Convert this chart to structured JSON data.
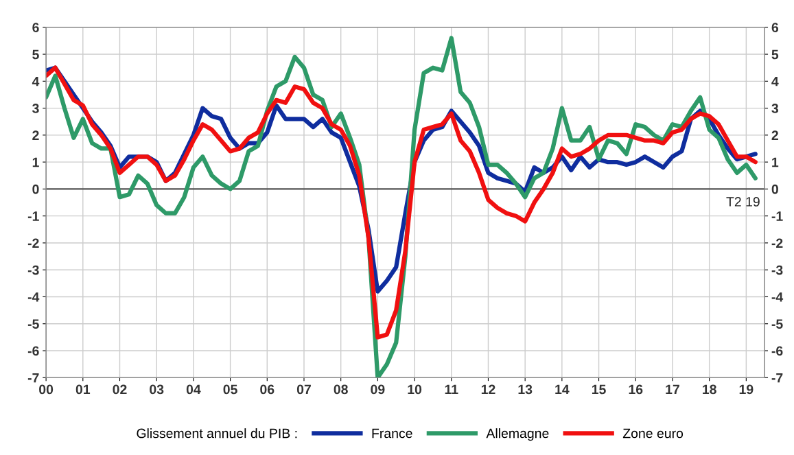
{
  "chart_data": {
    "type": "line",
    "x": [
      2000.0,
      2000.25,
      2000.5,
      2000.75,
      2001.0,
      2001.25,
      2001.5,
      2001.75,
      2002.0,
      2002.25,
      2002.5,
      2002.75,
      2003.0,
      2003.25,
      2003.5,
      2003.75,
      2004.0,
      2004.25,
      2004.5,
      2004.75,
      2005.0,
      2005.25,
      2005.5,
      2005.75,
      2006.0,
      2006.25,
      2006.5,
      2006.75,
      2007.0,
      2007.25,
      2007.5,
      2007.75,
      2008.0,
      2008.25,
      2008.5,
      2008.75,
      2009.0,
      2009.25,
      2009.5,
      2009.75,
      2010.0,
      2010.25,
      2010.5,
      2010.75,
      2011.0,
      2011.25,
      2011.5,
      2011.75,
      2012.0,
      2012.25,
      2012.5,
      2012.75,
      2013.0,
      2013.25,
      2013.5,
      2013.75,
      2014.0,
      2014.25,
      2014.5,
      2014.75,
      2015.0,
      2015.25,
      2015.5,
      2015.75,
      2016.0,
      2016.25,
      2016.5,
      2016.75,
      2017.0,
      2017.25,
      2017.5,
      2017.75,
      2018.0,
      2018.25,
      2018.5,
      2018.75,
      2019.0,
      2019.25
    ],
    "series": [
      {
        "name": "France",
        "color": "#0f2d9e",
        "values": [
          4.4,
          4.5,
          4.0,
          3.5,
          3.0,
          2.5,
          2.1,
          1.6,
          0.8,
          1.2,
          1.2,
          1.2,
          1.0,
          0.3,
          0.6,
          1.3,
          2.0,
          3.0,
          2.7,
          2.6,
          1.9,
          1.5,
          1.7,
          1.7,
          2.1,
          3.1,
          2.6,
          2.6,
          2.6,
          2.3,
          2.6,
          2.1,
          1.9,
          1.0,
          0.1,
          -1.5,
          -3.8,
          -3.4,
          -2.9,
          -0.9,
          1.0,
          1.8,
          2.2,
          2.3,
          2.9,
          2.5,
          2.1,
          1.6,
          0.6,
          0.4,
          0.3,
          0.2,
          -0.1,
          0.8,
          0.6,
          0.8,
          1.2,
          0.7,
          1.2,
          0.8,
          1.1,
          1.0,
          1.0,
          0.9,
          1.0,
          1.2,
          1.0,
          0.8,
          1.2,
          1.4,
          2.6,
          2.9,
          2.6,
          2.0,
          1.5,
          1.1,
          1.2,
          1.3
        ]
      },
      {
        "name": "Allemagne",
        "color": "#2e9a68",
        "values": [
          3.4,
          4.2,
          3.0,
          1.9,
          2.6,
          1.7,
          1.5,
          1.5,
          -0.3,
          -0.2,
          0.5,
          0.2,
          -0.6,
          -0.9,
          -0.9,
          -0.3,
          0.8,
          1.2,
          0.5,
          0.2,
          0.0,
          0.3,
          1.4,
          1.6,
          2.9,
          3.8,
          4.0,
          4.9,
          4.5,
          3.5,
          3.3,
          2.3,
          2.8,
          1.9,
          0.9,
          -1.8,
          -7.0,
          -6.5,
          -5.7,
          -2.5,
          2.2,
          4.3,
          4.5,
          4.4,
          5.6,
          3.6,
          3.2,
          2.3,
          0.9,
          0.9,
          0.6,
          0.2,
          -0.3,
          0.4,
          0.6,
          1.5,
          3.0,
          1.8,
          1.8,
          2.3,
          1.1,
          1.8,
          1.7,
          1.3,
          2.4,
          2.3,
          2.0,
          1.8,
          2.4,
          2.3,
          2.9,
          3.4,
          2.2,
          1.9,
          1.1,
          0.6,
          0.9,
          0.4
        ]
      },
      {
        "name": "Zone euro",
        "color": "#f01010",
        "values": [
          4.2,
          4.5,
          3.9,
          3.3,
          3.1,
          2.4,
          2.0,
          1.5,
          0.6,
          0.9,
          1.2,
          1.2,
          0.9,
          0.3,
          0.5,
          1.1,
          1.8,
          2.4,
          2.2,
          1.8,
          1.4,
          1.5,
          1.9,
          2.1,
          2.8,
          3.3,
          3.2,
          3.8,
          3.7,
          3.2,
          3.0,
          2.4,
          2.2,
          1.6,
          0.5,
          -1.8,
          -5.5,
          -5.4,
          -4.5,
          -2.3,
          1.0,
          2.2,
          2.3,
          2.4,
          2.8,
          1.8,
          1.4,
          0.6,
          -0.4,
          -0.7,
          -0.9,
          -1.0,
          -1.2,
          -0.5,
          0.0,
          0.6,
          1.5,
          1.2,
          1.3,
          1.5,
          1.8,
          2.0,
          2.0,
          2.0,
          1.9,
          1.8,
          1.8,
          1.7,
          2.1,
          2.2,
          2.6,
          2.8,
          2.7,
          2.4,
          1.8,
          1.2,
          1.2,
          1.0
        ]
      }
    ],
    "xlim": [
      2000,
      2019.5
    ],
    "xticks": [
      {
        "value": 2000,
        "label": "00"
      },
      {
        "value": 2001,
        "label": "01"
      },
      {
        "value": 2002,
        "label": "02"
      },
      {
        "value": 2003,
        "label": "03"
      },
      {
        "value": 2004,
        "label": "04"
      },
      {
        "value": 2005,
        "label": "05"
      },
      {
        "value": 2006,
        "label": "06"
      },
      {
        "value": 2007,
        "label": "07"
      },
      {
        "value": 2008,
        "label": "08"
      },
      {
        "value": 2009,
        "label": "09"
      },
      {
        "value": 2010,
        "label": "10"
      },
      {
        "value": 2011,
        "label": "11"
      },
      {
        "value": 2012,
        "label": "12"
      },
      {
        "value": 2013,
        "label": "13"
      },
      {
        "value": 2014,
        "label": "14"
      },
      {
        "value": 2015,
        "label": "15"
      },
      {
        "value": 2016,
        "label": "16"
      },
      {
        "value": 2017,
        "label": "17"
      },
      {
        "value": 2018,
        "label": "18"
      },
      {
        "value": 2019,
        "label": "19"
      }
    ],
    "ylim": [
      -7,
      6
    ],
    "yticks": [
      -7,
      -6,
      -5,
      -4,
      -3,
      -2,
      -1,
      0,
      1,
      2,
      3,
      4,
      5,
      6
    ],
    "y2lim": [
      -7,
      6
    ],
    "y2ticks": [
      -7,
      -6,
      -5,
      -4,
      -3,
      -2,
      -1,
      0,
      1,
      2,
      3,
      4,
      5,
      6
    ],
    "ref_lines": [
      {
        "axis": "y",
        "value": 0,
        "color": "#555555"
      }
    ],
    "annotations": [
      {
        "text": "T2 19",
        "x": 2019.25,
        "y": 0
      }
    ],
    "legend_title": "Glissement annuel du PIB :",
    "legend": "bottom",
    "grid": true,
    "marker": "none",
    "line_style": "solid"
  }
}
